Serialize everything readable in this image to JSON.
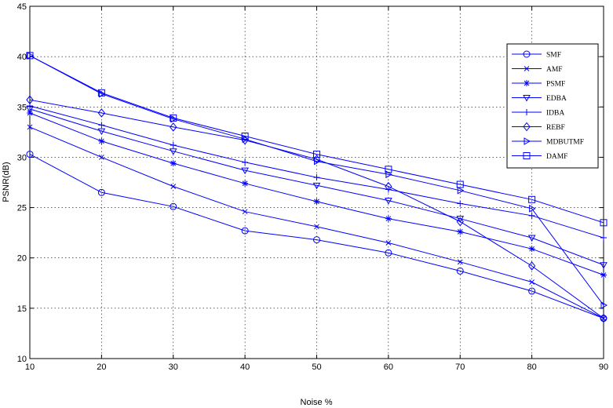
{
  "chart_data": {
    "type": "line",
    "title": "",
    "xlabel": "Noise %",
    "ylabel": "PSNR(dB)",
    "xlim": [
      10,
      90
    ],
    "ylim": [
      10,
      45
    ],
    "xticks": [
      10,
      20,
      30,
      40,
      50,
      60,
      70,
      80,
      90
    ],
    "yticks": [
      10,
      15,
      20,
      25,
      30,
      35,
      40,
      45
    ],
    "grid": true,
    "legend_position": "top-right",
    "line_color": "#0000ff",
    "x": [
      10,
      20,
      30,
      40,
      50,
      60,
      70,
      80,
      90
    ],
    "series": [
      {
        "name": "SMF",
        "marker": "circle",
        "values": [
          30.3,
          26.5,
          25.1,
          22.7,
          21.8,
          20.5,
          18.7,
          16.7,
          14.0
        ]
      },
      {
        "name": "AMF",
        "marker": "x",
        "values": [
          33.0,
          30.0,
          27.1,
          24.6,
          23.1,
          21.5,
          19.6,
          17.6,
          14.0
        ]
      },
      {
        "name": "PSMF",
        "marker": "star",
        "values": [
          34.4,
          31.6,
          29.4,
          27.4,
          25.6,
          23.9,
          22.6,
          20.9,
          18.3
        ]
      },
      {
        "name": "EDBA",
        "marker": "triangle-down",
        "values": [
          34.8,
          32.6,
          30.6,
          28.7,
          27.2,
          25.7,
          23.9,
          22.0,
          19.3
        ]
      },
      {
        "name": "IDBA",
        "marker": "plus",
        "values": [
          35.1,
          33.2,
          31.2,
          29.5,
          28.0,
          26.8,
          25.4,
          24.2,
          22.0
        ]
      },
      {
        "name": "REBF",
        "marker": "diamond",
        "values": [
          35.7,
          34.4,
          33.0,
          31.7,
          29.8,
          27.1,
          23.6,
          19.2,
          14.0
        ]
      },
      {
        "name": "MDBUTMF",
        "marker": "triangle-right",
        "values": [
          40.1,
          36.3,
          33.8,
          31.8,
          29.6,
          28.3,
          26.7,
          24.9,
          15.3
        ]
      },
      {
        "name": "DAMF",
        "marker": "square",
        "values": [
          40.1,
          36.4,
          33.9,
          32.1,
          30.3,
          28.8,
          27.3,
          25.8,
          23.5
        ]
      }
    ]
  }
}
